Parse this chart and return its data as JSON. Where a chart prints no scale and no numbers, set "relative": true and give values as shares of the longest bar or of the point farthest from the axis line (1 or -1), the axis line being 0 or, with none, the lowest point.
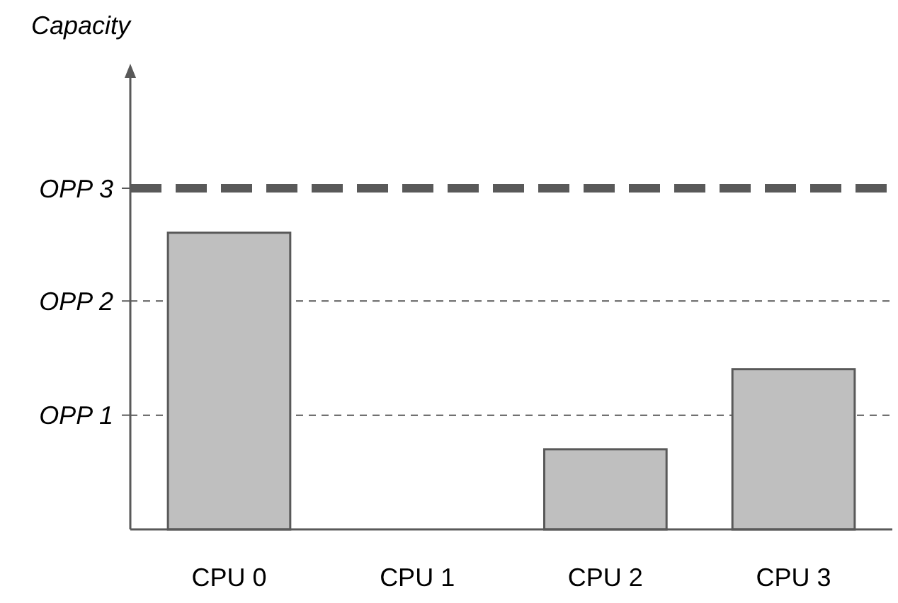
{
  "chart_data": {
    "type": "bar",
    "annotations": [
      "Capacity"
    ],
    "categories": [
      "CPU 0",
      "CPU 1",
      "CPU 2",
      "CPU 3"
    ],
    "values": [
      1,
      0,
      0.27,
      0.54
    ],
    "color": "#bfbfbf",
    "relative": true,
    "ref_lines": [
      {
        "axis": "y",
        "value": 0.385,
        "label": "OPP 1",
        "color": "#595959",
        "line_style": "dashed"
      },
      {
        "axis": "y",
        "value": 0.77,
        "label": "OPP 2",
        "color": "#595959",
        "line_style": "dashed"
      },
      {
        "axis": "y",
        "value": 1.15,
        "label": "OPP 3",
        "color": "#595959",
        "line_style": "dashed"
      }
    ]
  }
}
